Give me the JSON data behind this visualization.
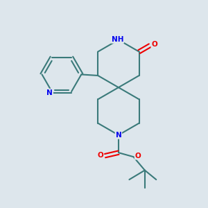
{
  "background_color": "#dde6ec",
  "bond_color": "#3a7a7a",
  "bond_width": 1.5,
  "atom_colors": {
    "N": "#0000ee",
    "O": "#ee0000",
    "C": "#000000"
  },
  "xlim": [
    0,
    10
  ],
  "ylim": [
    0,
    10
  ]
}
